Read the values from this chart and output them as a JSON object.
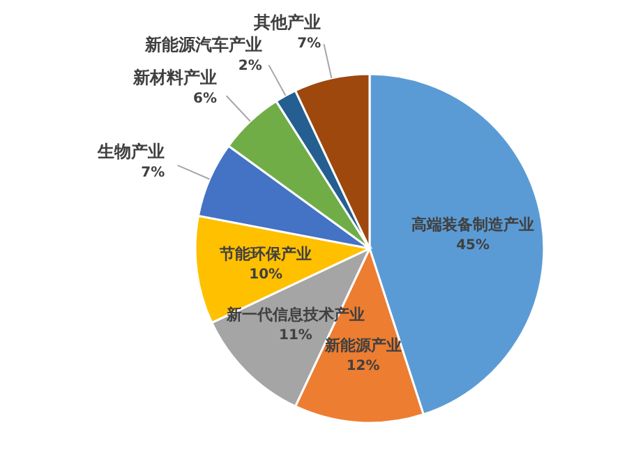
{
  "chart_data": {
    "type": "pie",
    "categories": [
      "高端装备制造产业",
      "新能源产业",
      "新一代信息技术产业",
      "节能环保产业",
      "生物产业",
      "新材料产业",
      "新能源汽车产业",
      "其他产业"
    ],
    "values": [
      45,
      12,
      11,
      10,
      7,
      6,
      2,
      7
    ],
    "colors": [
      "#5b9bd5",
      "#ed7d31",
      "#a5a5a5",
      "#ffc000",
      "#4472c4",
      "#70ad47",
      "#255e91",
      "#9e480e"
    ],
    "value_labels": [
      "45%",
      "12%",
      "11%",
      "10%",
      "7%",
      "6%",
      "2%",
      "7%"
    ]
  }
}
